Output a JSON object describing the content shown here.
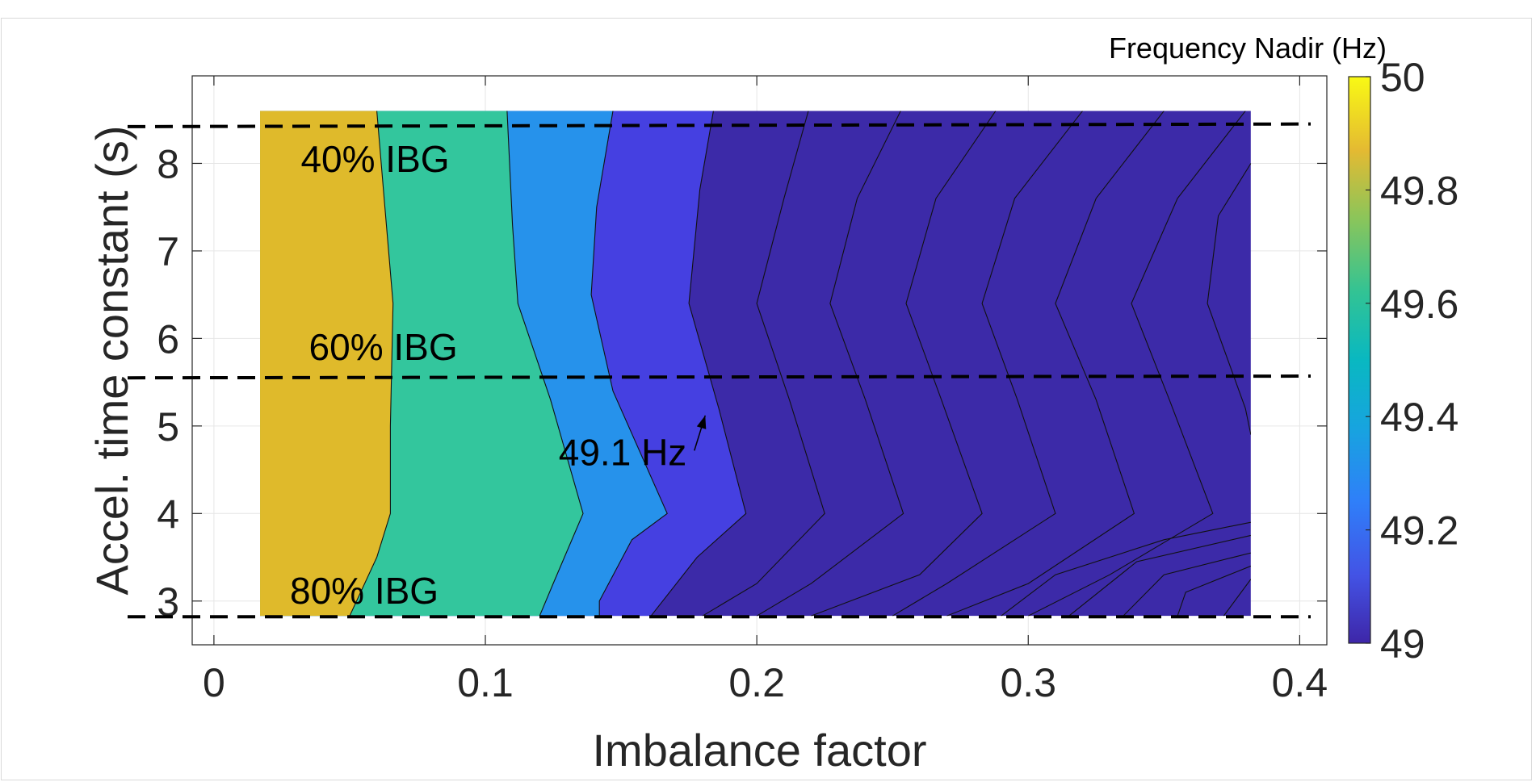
{
  "chart_data": {
    "type": "contour",
    "xlabel": "Imbalance factor",
    "ylabel": "Accel. time constant (s)",
    "colorbar_title": "Frequency Nadir (Hz)",
    "xlim": [
      -0.008,
      0.41
    ],
    "ylim": [
      2.5,
      9.0
    ],
    "xticks": [
      0,
      0.1,
      0.2,
      0.3,
      0.4
    ],
    "xtick_labels": [
      "0",
      "0.1",
      "0.2",
      "0.3",
      "0.4"
    ],
    "yticks": [
      3,
      4,
      5,
      6,
      7,
      8
    ],
    "ytick_labels": [
      "3",
      "4",
      "5",
      "6",
      "7",
      "8"
    ],
    "grid": true,
    "colorbar": {
      "range": [
        49,
        50
      ],
      "ticks": [
        49,
        49.2,
        49.4,
        49.6,
        49.8,
        50
      ],
      "tick_labels": [
        "49",
        "49.2",
        "49.4",
        "49.6",
        "49.8",
        "50"
      ],
      "colormap": "parula"
    },
    "data_extent": {
      "x": [
        0.017,
        0.382
      ],
      "y": [
        2.83,
        8.6
      ]
    },
    "contour_levels": [
      49.8,
      49.6,
      49.4,
      49.2,
      49.0
    ],
    "region_colors": {
      "above_49.8": "#dfba2b",
      "49.6_49.8": "#33c69d",
      "49.4_49.6": "#2692eb",
      "49.2_49.4": "#4540e1",
      "below_49.2": "#3c2aa8"
    },
    "contours": [
      {
        "level": 49.8,
        "points": [
          [
            0.06,
            8.6
          ],
          [
            0.063,
            7.5
          ],
          [
            0.066,
            6.4
          ],
          [
            0.065,
            5.0
          ],
          [
            0.065,
            4.0
          ],
          [
            0.06,
            3.5
          ],
          [
            0.05,
            2.83
          ]
        ]
      },
      {
        "level": 49.6,
        "points": [
          [
            0.108,
            8.6
          ],
          [
            0.11,
            7.3
          ],
          [
            0.112,
            6.4
          ],
          [
            0.124,
            5.3
          ],
          [
            0.136,
            4.0
          ],
          [
            0.125,
            3.2
          ],
          [
            0.12,
            2.83
          ]
        ]
      },
      {
        "level": 49.4,
        "points": [
          [
            0.147,
            8.6
          ],
          [
            0.141,
            7.5
          ],
          [
            0.139,
            6.5
          ],
          [
            0.147,
            5.4
          ],
          [
            0.167,
            4.0
          ],
          [
            0.154,
            3.7
          ],
          [
            0.142,
            3.0
          ],
          [
            0.142,
            2.83
          ]
        ]
      },
      {
        "level": 49.2,
        "points": [
          [
            0.184,
            8.6
          ],
          [
            0.179,
            7.7
          ],
          [
            0.175,
            6.4
          ],
          [
            0.186,
            5.2
          ],
          [
            0.196,
            4.0
          ],
          [
            0.178,
            3.5
          ],
          [
            0.161,
            2.83
          ]
        ]
      }
    ],
    "extra_contours": [
      [
        [
          0.219,
          8.6
        ],
        [
          0.21,
          7.6
        ],
        [
          0.2,
          6.4
        ],
        [
          0.212,
          5.3
        ],
        [
          0.225,
          4.0
        ],
        [
          0.2,
          3.2
        ],
        [
          0.18,
          2.83
        ]
      ],
      [
        [
          0.253,
          8.6
        ],
        [
          0.237,
          7.6
        ],
        [
          0.227,
          6.4
        ],
        [
          0.24,
          5.3
        ],
        [
          0.254,
          4.0
        ],
        [
          0.22,
          3.2
        ],
        [
          0.2,
          2.83
        ]
      ],
      [
        [
          0.288,
          8.6
        ],
        [
          0.266,
          7.6
        ],
        [
          0.255,
          6.4
        ],
        [
          0.268,
          5.3
        ],
        [
          0.283,
          4.0
        ],
        [
          0.26,
          3.3
        ],
        [
          0.22,
          2.83
        ]
      ],
      [
        [
          0.32,
          8.6
        ],
        [
          0.295,
          7.6
        ],
        [
          0.283,
          6.4
        ],
        [
          0.296,
          5.3
        ],
        [
          0.31,
          4.0
        ],
        [
          0.27,
          3.2
        ],
        [
          0.25,
          2.83
        ]
      ],
      [
        [
          0.35,
          8.6
        ],
        [
          0.325,
          7.6
        ],
        [
          0.31,
          6.4
        ],
        [
          0.325,
          5.3
        ],
        [
          0.339,
          4.0
        ],
        [
          0.3,
          3.2
        ],
        [
          0.27,
          2.83
        ]
      ],
      [
        [
          0.38,
          8.6
        ],
        [
          0.355,
          7.6
        ],
        [
          0.338,
          6.4
        ],
        [
          0.352,
          5.3
        ],
        [
          0.368,
          4.0
        ],
        [
          0.33,
          3.3
        ],
        [
          0.3,
          2.83
        ]
      ],
      [
        [
          0.382,
          8.0
        ],
        [
          0.37,
          7.4
        ],
        [
          0.366,
          6.4
        ],
        [
          0.38,
          5.2
        ],
        [
          0.382,
          4.9
        ]
      ],
      [
        [
          0.382,
          3.9
        ],
        [
          0.35,
          3.7
        ],
        [
          0.31,
          3.3
        ],
        [
          0.29,
          2.83
        ]
      ],
      [
        [
          0.382,
          3.75
        ],
        [
          0.34,
          3.45
        ],
        [
          0.315,
          2.83
        ]
      ],
      [
        [
          0.382,
          3.55
        ],
        [
          0.35,
          3.3
        ],
        [
          0.335,
          2.83
        ]
      ],
      [
        [
          0.382,
          3.4
        ],
        [
          0.358,
          3.1
        ],
        [
          0.355,
          2.83
        ]
      ],
      [
        [
          0.382,
          3.25
        ],
        [
          0.372,
          2.83
        ]
      ]
    ],
    "reference_lines": [
      {
        "label": "40% IBG",
        "y_start": 8.42,
        "y_end": 8.45,
        "label_x": 0.032,
        "label_y": 8.05
      },
      {
        "label": "60% IBG",
        "y_start": 5.55,
        "y_end": 5.57,
        "label_x": 0.035,
        "label_y": 5.9
      },
      {
        "label": "80% IBG",
        "y_start": 2.82,
        "y_end": 2.82,
        "label_x": 0.028,
        "label_y": 3.12
      }
    ],
    "annotations": [
      {
        "text": "49.1 Hz",
        "x": 0.127,
        "y": 4.7,
        "arrow_to_x": 0.181,
        "arrow_to_y": 5.12
      }
    ]
  }
}
